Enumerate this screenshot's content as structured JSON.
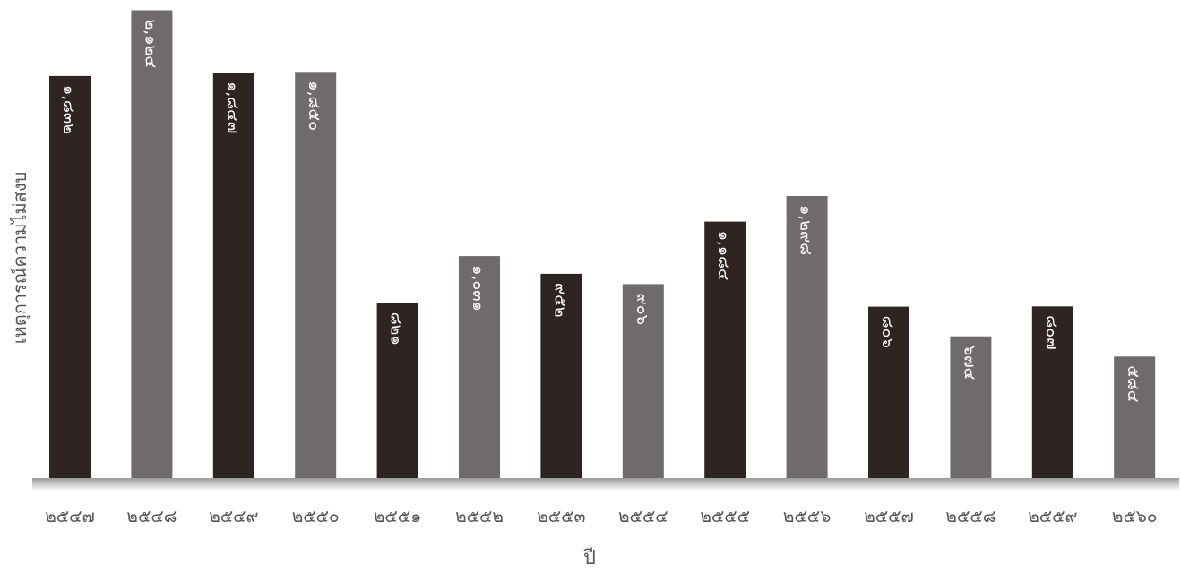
{
  "chart_data": {
    "type": "bar",
    "categories": [
      "๒๕๔๗",
      "๒๕๔๘",
      "๒๕๔๙",
      "๒๕๕๐",
      "๒๕๕๑",
      "๒๕๕๒",
      "๒๕๕๓",
      "๒๕๕๔",
      "๒๕๕๕",
      "๒๕๕๖",
      "๒๕๕๗",
      "๒๕๕๘",
      "๒๕๕๙",
      "๒๕๖๐"
    ],
    "values": [
      1832,
      2124,
      1847,
      1850,
      821,
      1031,
      952,
      906,
      1184,
      1298,
      806,
      674,
      807,
      584
    ],
    "value_labels": [
      "๑,๘๓๒",
      "๒,๑๒๔",
      "๑,๘๔๗",
      "๑,๘๕๐",
      "๘๒๑",
      "๑,๐๓๑",
      "๙๕๒",
      "๙๐๖",
      "๑,๑๘๔",
      "๑,๒๙๘",
      "๘๐๖",
      "๖๗๔",
      "๘๐๗",
      "๕๘๔"
    ],
    "xlabel": "ปี",
    "ylabel": "เหตุการณ์ความไม่สงบ",
    "ylim": [
      0,
      2150
    ],
    "grid": false,
    "legend": "none",
    "colors": {
      "dark": "#2e2522",
      "light": "#6e6b6a",
      "baseline": "#8f8f8f",
      "label": "#ffffff",
      "text": "#555555"
    }
  }
}
